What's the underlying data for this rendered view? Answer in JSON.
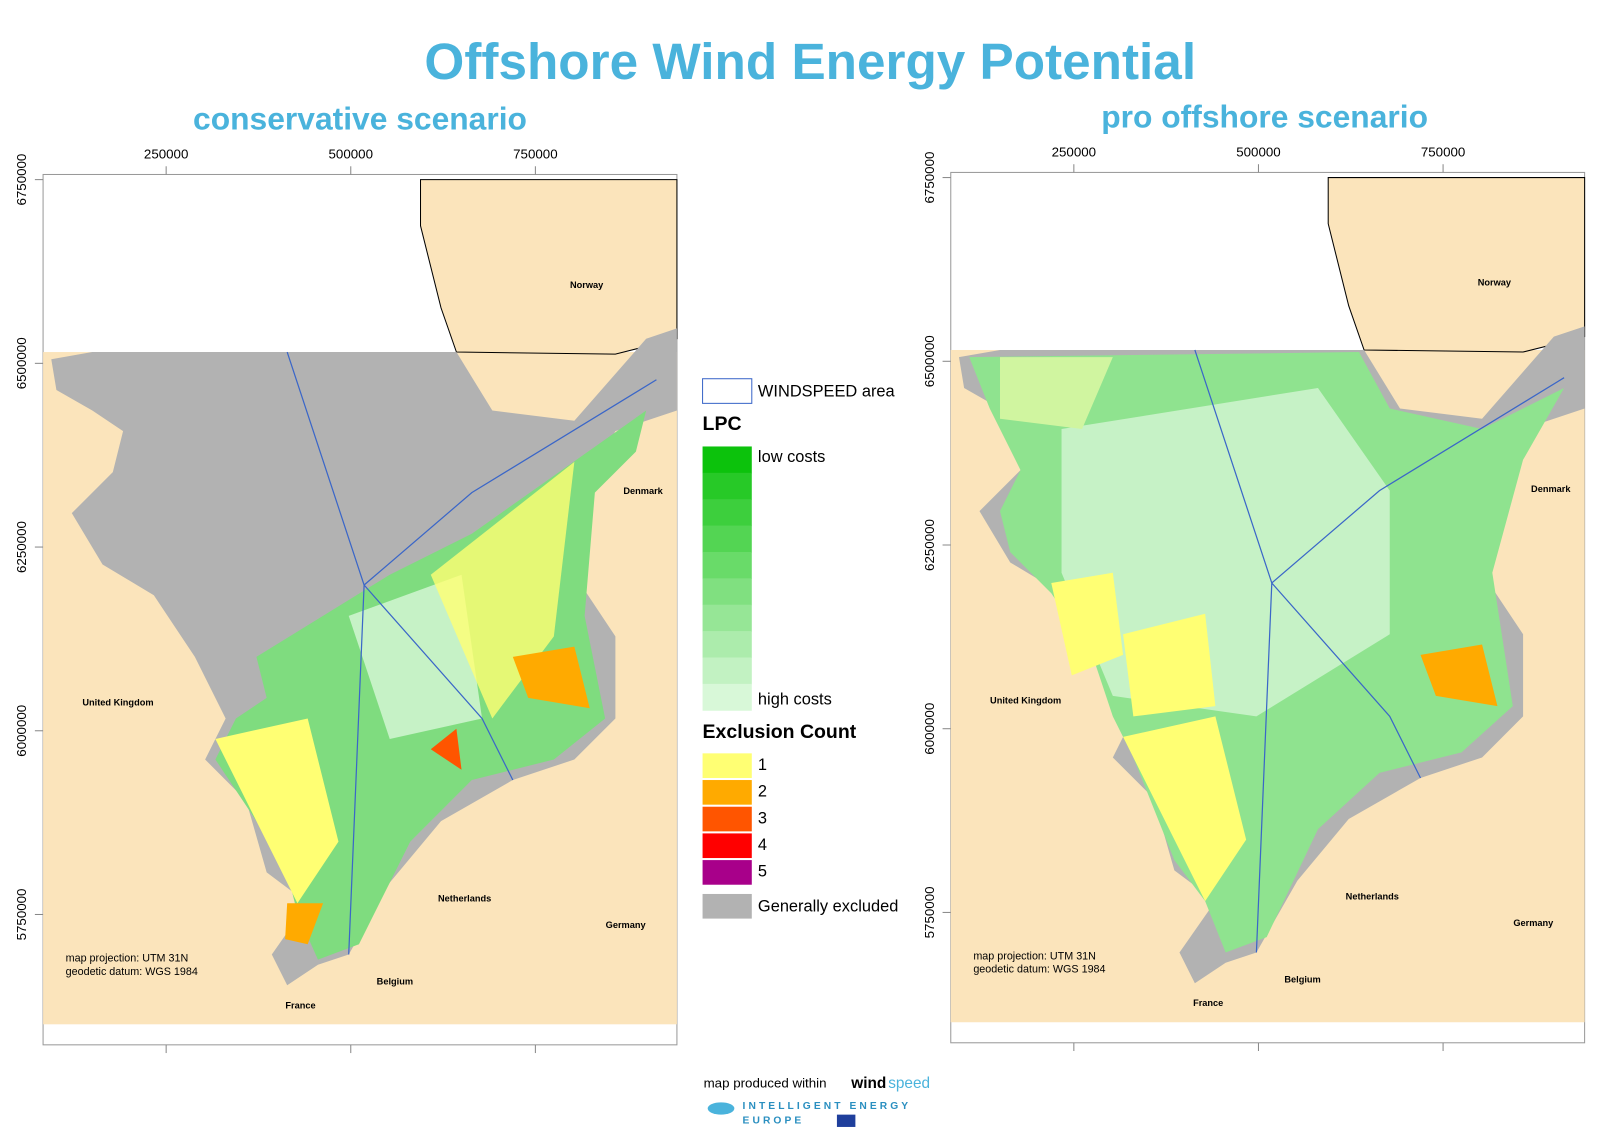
{
  "title": "Offshore Wind Energy Potential",
  "maps": [
    {
      "subtitle": "conservative scenario",
      "xticks": [
        250000,
        500000,
        750000
      ],
      "yticks": [
        5750000,
        6000000,
        6250000,
        6500000,
        6750000
      ],
      "countries": [
        "Norway",
        "Denmark",
        "United Kingdom",
        "Netherlands",
        "Germany",
        "Belgium",
        "France"
      ],
      "projection": "map projection:  UTM 31N",
      "datum": "geodetic datum:  WGS 1984"
    },
    {
      "subtitle": "pro offshore scenario",
      "xticks": [
        250000,
        500000,
        750000
      ],
      "yticks": [
        5750000,
        6000000,
        6250000,
        6500000,
        6750000
      ],
      "countries": [
        "Norway",
        "Denmark",
        "United Kingdom",
        "Netherlands",
        "Germany",
        "Belgium",
        "France"
      ],
      "projection": "map projection:  UTM 31N",
      "datum": "geodetic datum:  WGS 1984"
    }
  ],
  "legend": {
    "area": "WINDSPEED area",
    "lpc_title": "LPC",
    "lpc_colors": [
      "#0cc20c",
      "#27c927",
      "#3dcf3d",
      "#53d553",
      "#69db69",
      "#80e080",
      "#96e696",
      "#acecac",
      "#c2f2c2",
      "#d8f8d8"
    ],
    "lpc_low": "low costs",
    "lpc_high": "high costs",
    "exclusion_title": "Exclusion Count",
    "exclusion": [
      {
        "label": "1",
        "color": "#ffff73"
      },
      {
        "label": "2",
        "color": "#ffaa00"
      },
      {
        "label": "3",
        "color": "#ff5500"
      },
      {
        "label": "4",
        "color": "#ff0000"
      },
      {
        "label": "5",
        "color": "#a8008a"
      }
    ],
    "excluded": {
      "label": "Generally excluded",
      "color": "#b2b2b2"
    }
  },
  "footer": {
    "produced": "map produced within",
    "logo_a": "wind",
    "logo_b": "speed",
    "program_1": "INTELLIGENT ENERGY",
    "program_2": "EUROPE"
  }
}
